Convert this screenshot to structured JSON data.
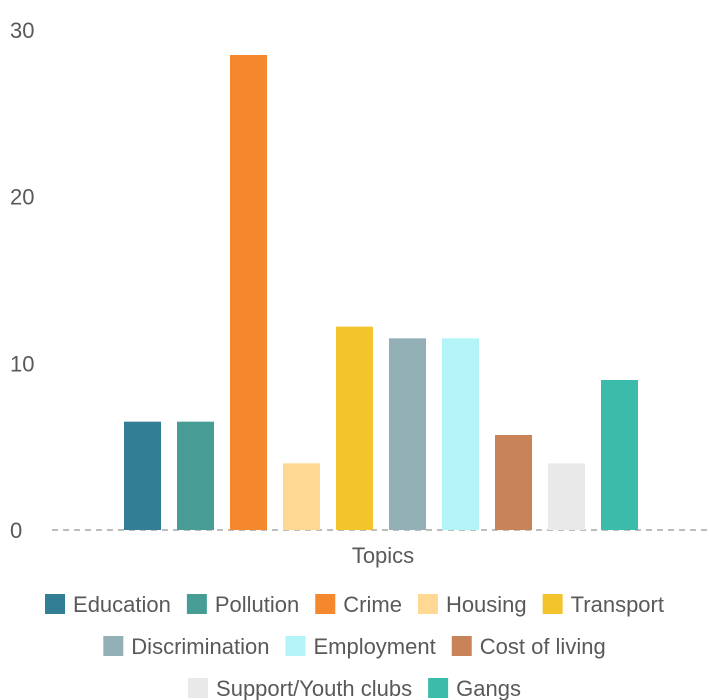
{
  "chart_data": {
    "type": "bar",
    "title": "",
    "xlabel": "Topics",
    "ylabel": "",
    "ylim": [
      0,
      30
    ],
    "yticks": [
      0,
      10,
      20,
      30
    ],
    "grid": false,
    "baseline": "dashed",
    "legend_position": "bottom",
    "categories": [
      "Topics"
    ],
    "series": [
      {
        "name": "Education",
        "values": [
          6.5
        ],
        "color": "#317e95"
      },
      {
        "name": "Pollution",
        "values": [
          6.5
        ],
        "color": "#479d95"
      },
      {
        "name": "Crime",
        "values": [
          28.5
        ],
        "color": "#f5872d"
      },
      {
        "name": "Housing",
        "values": [
          4.0
        ],
        "color": "#ffd993"
      },
      {
        "name": "Transport",
        "values": [
          12.2
        ],
        "color": "#f4c42c"
      },
      {
        "name": "Discrimination",
        "values": [
          11.5
        ],
        "color": "#92b0b6"
      },
      {
        "name": "Employment",
        "values": [
          11.5
        ],
        "color": "#b3f5f7"
      },
      {
        "name": "Cost of living",
        "values": [
          5.7
        ],
        "color": "#c88458"
      },
      {
        "name": "Support/Youth clubs",
        "values": [
          4.0
        ],
        "color": "#e9e9e9"
      },
      {
        "name": "Gangs",
        "values": [
          9.0
        ],
        "color": "#3bbcab"
      }
    ]
  }
}
